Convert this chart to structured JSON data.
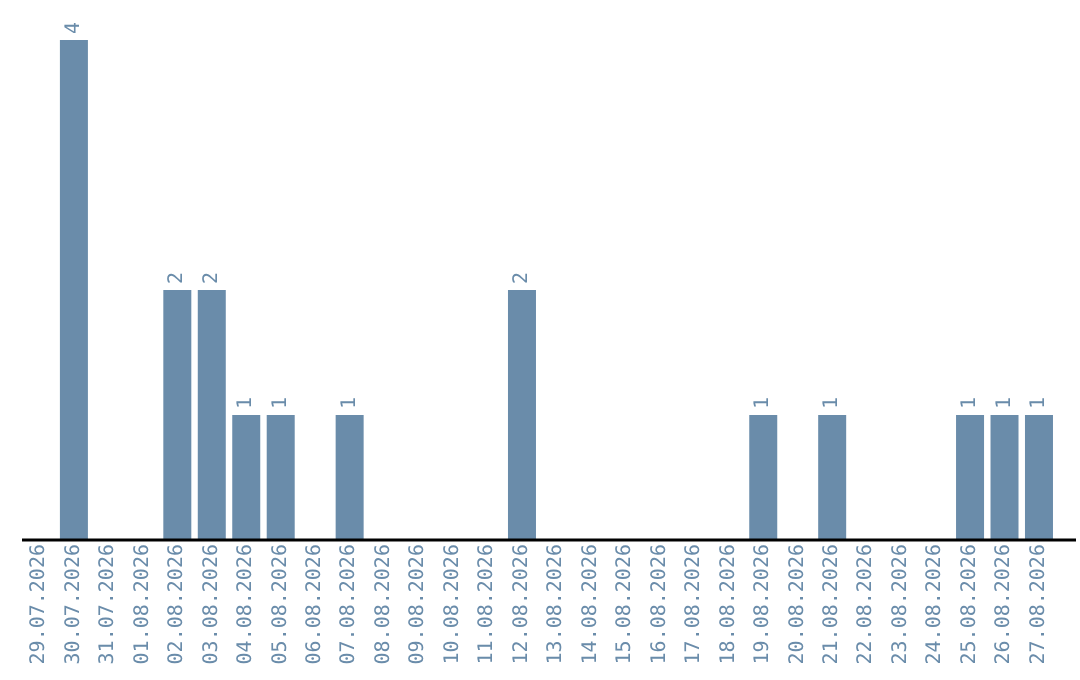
{
  "chart_data": {
    "type": "bar",
    "categories": [
      "29.07.2026",
      "30.07.2026",
      "31.07.2026",
      "01.08.2026",
      "02.08.2026",
      "03.08.2026",
      "04.08.2026",
      "05.08.2026",
      "06.08.2026",
      "07.08.2026",
      "08.08.2026",
      "09.08.2026",
      "10.08.2026",
      "11.08.2026",
      "12.08.2026",
      "13.08.2026",
      "14.08.2026",
      "15.08.2026",
      "16.08.2026",
      "17.08.2026",
      "18.08.2026",
      "19.08.2026",
      "20.08.2026",
      "21.08.2026",
      "22.08.2026",
      "23.08.2026",
      "24.08.2026",
      "25.08.2026",
      "26.08.2026",
      "27.08.2026"
    ],
    "values": [
      0,
      4,
      0,
      0,
      2,
      2,
      1,
      1,
      0,
      1,
      0,
      0,
      0,
      0,
      2,
      0,
      0,
      0,
      0,
      0,
      0,
      1,
      0,
      1,
      0,
      0,
      0,
      1,
      1,
      1
    ],
    "value_labels": [
      null,
      "4",
      null,
      null,
      "2",
      "2",
      "1",
      "1",
      null,
      "1",
      null,
      null,
      null,
      null,
      "2",
      null,
      null,
      null,
      null,
      null,
      null,
      "1",
      null,
      "1",
      null,
      null,
      null,
      "1",
      "1",
      "1"
    ],
    "color": "#6a8caa",
    "grid": false,
    "legend": false
  }
}
